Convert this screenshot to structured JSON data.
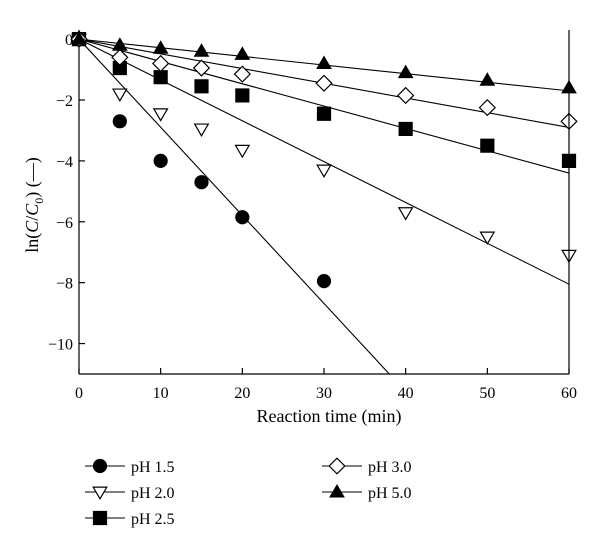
{
  "chart_data": {
    "type": "scatter",
    "xlabel": "Reaction time (min)",
    "ylabel_parts": [
      "ln(",
      "C",
      "/",
      "C",
      "0",
      ") (—)"
    ],
    "xlim": [
      0,
      60
    ],
    "ylim": [
      -11,
      0.3
    ],
    "x_ticks": [
      0,
      10,
      20,
      30,
      40,
      50,
      60
    ],
    "y_ticks": [
      0,
      -2,
      -4,
      -6,
      -8,
      -10
    ],
    "grid": false,
    "legend_position": "bottom",
    "series": [
      {
        "name": "pH 1.5",
        "marker": "circle-filled",
        "points": [
          [
            0,
            0
          ],
          [
            5,
            -2.7
          ],
          [
            10,
            -4.0
          ],
          [
            15,
            -4.7
          ],
          [
            20,
            -5.85
          ],
          [
            30,
            -7.95
          ]
        ],
        "fit_line": [
          [
            0,
            0
          ],
          [
            38,
            -11.0
          ]
        ]
      },
      {
        "name": "pH 2.0",
        "marker": "triangle-down-open",
        "points": [
          [
            0,
            0
          ],
          [
            5,
            -1.8
          ],
          [
            10,
            -2.45
          ],
          [
            15,
            -2.95
          ],
          [
            20,
            -3.65
          ],
          [
            30,
            -4.3
          ],
          [
            40,
            -5.7
          ],
          [
            50,
            -6.5
          ],
          [
            60,
            -7.1
          ]
        ],
        "fit_line": [
          [
            0,
            0
          ],
          [
            60,
            -8.05
          ]
        ]
      },
      {
        "name": "pH 2.5",
        "marker": "square-filled",
        "points": [
          [
            0,
            0
          ],
          [
            5,
            -0.95
          ],
          [
            10,
            -1.25
          ],
          [
            15,
            -1.55
          ],
          [
            20,
            -1.85
          ],
          [
            30,
            -2.45
          ],
          [
            40,
            -2.95
          ],
          [
            50,
            -3.5
          ],
          [
            60,
            -4.0
          ]
        ],
        "fit_line": [
          [
            0,
            0
          ],
          [
            60,
            -4.4
          ]
        ]
      },
      {
        "name": "pH 3.0",
        "marker": "diamond-open",
        "points": [
          [
            0,
            0
          ],
          [
            5,
            -0.6
          ],
          [
            10,
            -0.8
          ],
          [
            15,
            -0.95
          ],
          [
            20,
            -1.15
          ],
          [
            30,
            -1.45
          ],
          [
            40,
            -1.85
          ],
          [
            50,
            -2.25
          ],
          [
            60,
            -2.7
          ]
        ],
        "fit_line": [
          [
            0,
            0
          ],
          [
            60,
            -2.9
          ]
        ]
      },
      {
        "name": "pH 5.0",
        "marker": "triangle-up-filled",
        "points": [
          [
            0,
            0
          ],
          [
            5,
            -0.2
          ],
          [
            10,
            -0.3
          ],
          [
            15,
            -0.4
          ],
          [
            20,
            -0.5
          ],
          [
            30,
            -0.8
          ],
          [
            40,
            -1.1
          ],
          [
            50,
            -1.35
          ],
          [
            60,
            -1.6
          ]
        ],
        "fit_line": [
          [
            0,
            0
          ],
          [
            60,
            -1.7
          ]
        ]
      }
    ]
  }
}
